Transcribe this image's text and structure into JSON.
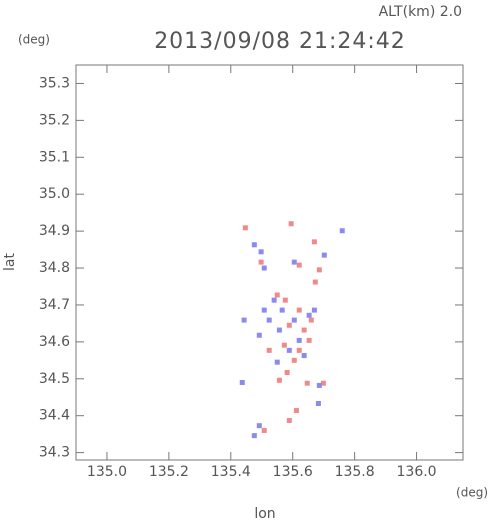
{
  "chart_data": {
    "type": "scatter",
    "title": "2013/09/08 21:24:42",
    "subtitle": "ALT(km) 2.0",
    "y_unit": "(deg)",
    "x_unit": "(deg)",
    "x_label": "lon",
    "y_label": "lat",
    "xlim": [
      134.9,
      136.15
    ],
    "ylim": [
      34.28,
      35.35
    ],
    "xticks": [
      {
        "value": 135.0,
        "label": "135.0"
      },
      135.2,
      135.4,
      135.6,
      135.8,
      {
        "value": 136.0,
        "label": "136.0"
      }
    ],
    "yticks": [
      34.3,
      34.4,
      34.5,
      34.6,
      34.7,
      34.8,
      34.9,
      {
        "value": 35.0,
        "label": "35.0"
      },
      35.1,
      35.2,
      35.3
    ],
    "series": [
      {
        "color": "#f08a8a",
        "x": [
          135.447,
          135.595,
          135.67,
          135.621,
          135.686,
          135.673,
          135.498,
          135.55,
          135.621,
          135.589,
          135.637,
          135.573,
          135.621,
          135.605,
          135.582,
          135.557,
          135.653,
          135.66,
          135.524,
          135.647,
          135.699,
          135.612,
          135.589,
          135.508,
          135.576
        ],
        "y": [
          34.909,
          34.92,
          34.871,
          34.808,
          34.795,
          34.762,
          34.816,
          34.727,
          34.686,
          34.645,
          34.632,
          34.591,
          34.577,
          34.55,
          34.517,
          34.496,
          34.604,
          34.659,
          34.577,
          34.488,
          34.488,
          34.414,
          34.387,
          34.36,
          34.713
        ]
      },
      {
        "color": "#8a8af0",
        "x": [
          135.476,
          135.498,
          135.508,
          135.76,
          135.702,
          135.605,
          135.54,
          135.508,
          135.605,
          135.653,
          135.67,
          135.557,
          135.524,
          135.492,
          135.621,
          135.589,
          135.637,
          135.55,
          135.686,
          135.683,
          135.492,
          135.476,
          135.443,
          135.437,
          135.566
        ],
        "y": [
          34.863,
          34.844,
          34.8,
          34.901,
          34.835,
          34.816,
          34.713,
          34.686,
          34.659,
          34.672,
          34.686,
          34.632,
          34.659,
          34.618,
          34.604,
          34.577,
          34.563,
          34.545,
          34.482,
          34.433,
          34.373,
          34.346,
          34.659,
          34.49,
          34.686
        ]
      }
    ]
  }
}
